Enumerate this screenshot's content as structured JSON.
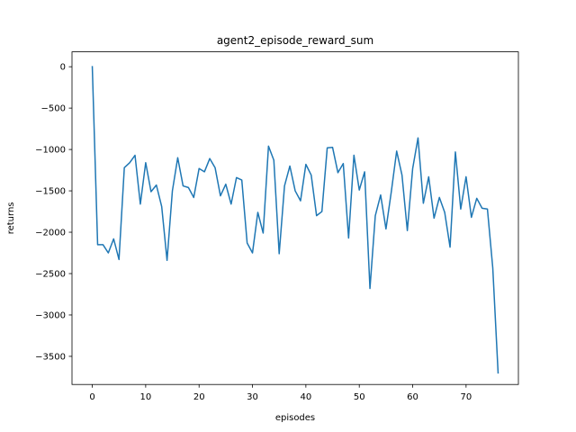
{
  "chart_data": {
    "type": "line",
    "title": "agent2_episode_reward_sum",
    "xlabel": "episodes",
    "ylabel": "returns",
    "xlim": [
      -3.8,
      79.8
    ],
    "ylim": [
      -3840,
      180
    ],
    "xticks": [
      0,
      10,
      20,
      30,
      40,
      50,
      60,
      70
    ],
    "yticks": [
      0,
      -500,
      -1000,
      -1500,
      -2000,
      -2500,
      -3000,
      -3500
    ],
    "ytick_labels": [
      "0",
      "−500",
      "−1000",
      "−1500",
      "−2000",
      "−2500",
      "−3000",
      "−3500"
    ],
    "grid": false,
    "legend": "none",
    "series": [
      {
        "color": "#1f77b4",
        "x": [
          0,
          1,
          2,
          3,
          4,
          5,
          6,
          7,
          8,
          9,
          10,
          11,
          12,
          13,
          14,
          15,
          16,
          17,
          18,
          19,
          20,
          21,
          22,
          23,
          24,
          25,
          26,
          27,
          28,
          29,
          30,
          31,
          32,
          33,
          34,
          35,
          36,
          37,
          38,
          39,
          40,
          41,
          42,
          43,
          44,
          45,
          46,
          47,
          48,
          49,
          50,
          51,
          52,
          53,
          54,
          55,
          56,
          57,
          58,
          59,
          60,
          61,
          62,
          63,
          64,
          65,
          66,
          67,
          68,
          69,
          70,
          71,
          72,
          73,
          74,
          75,
          76
        ],
        "y": [
          0,
          -2150,
          -2150,
          -2250,
          -2080,
          -2330,
          -1220,
          -1160,
          -1070,
          -1660,
          -1160,
          -1510,
          -1430,
          -1690,
          -2340,
          -1500,
          -1100,
          -1440,
          -1460,
          -1580,
          -1230,
          -1270,
          -1110,
          -1220,
          -1560,
          -1420,
          -1660,
          -1340,
          -1370,
          -2130,
          -2250,
          -1760,
          -2010,
          -960,
          -1130,
          -2260,
          -1440,
          -1200,
          -1500,
          -1620,
          -1180,
          -1310,
          -1800,
          -1750,
          -980,
          -975,
          -1280,
          -1170,
          -2070,
          -1070,
          -1490,
          -1270,
          -2680,
          -1800,
          -1550,
          -1960,
          -1510,
          -1020,
          -1310,
          -1980,
          -1230,
          -860,
          -1650,
          -1330,
          -1830,
          -1580,
          -1760,
          -2180,
          -1030,
          -1720,
          -1330,
          -1820,
          -1590,
          -1710,
          -1720,
          -2430,
          -3700
        ]
      }
    ]
  }
}
